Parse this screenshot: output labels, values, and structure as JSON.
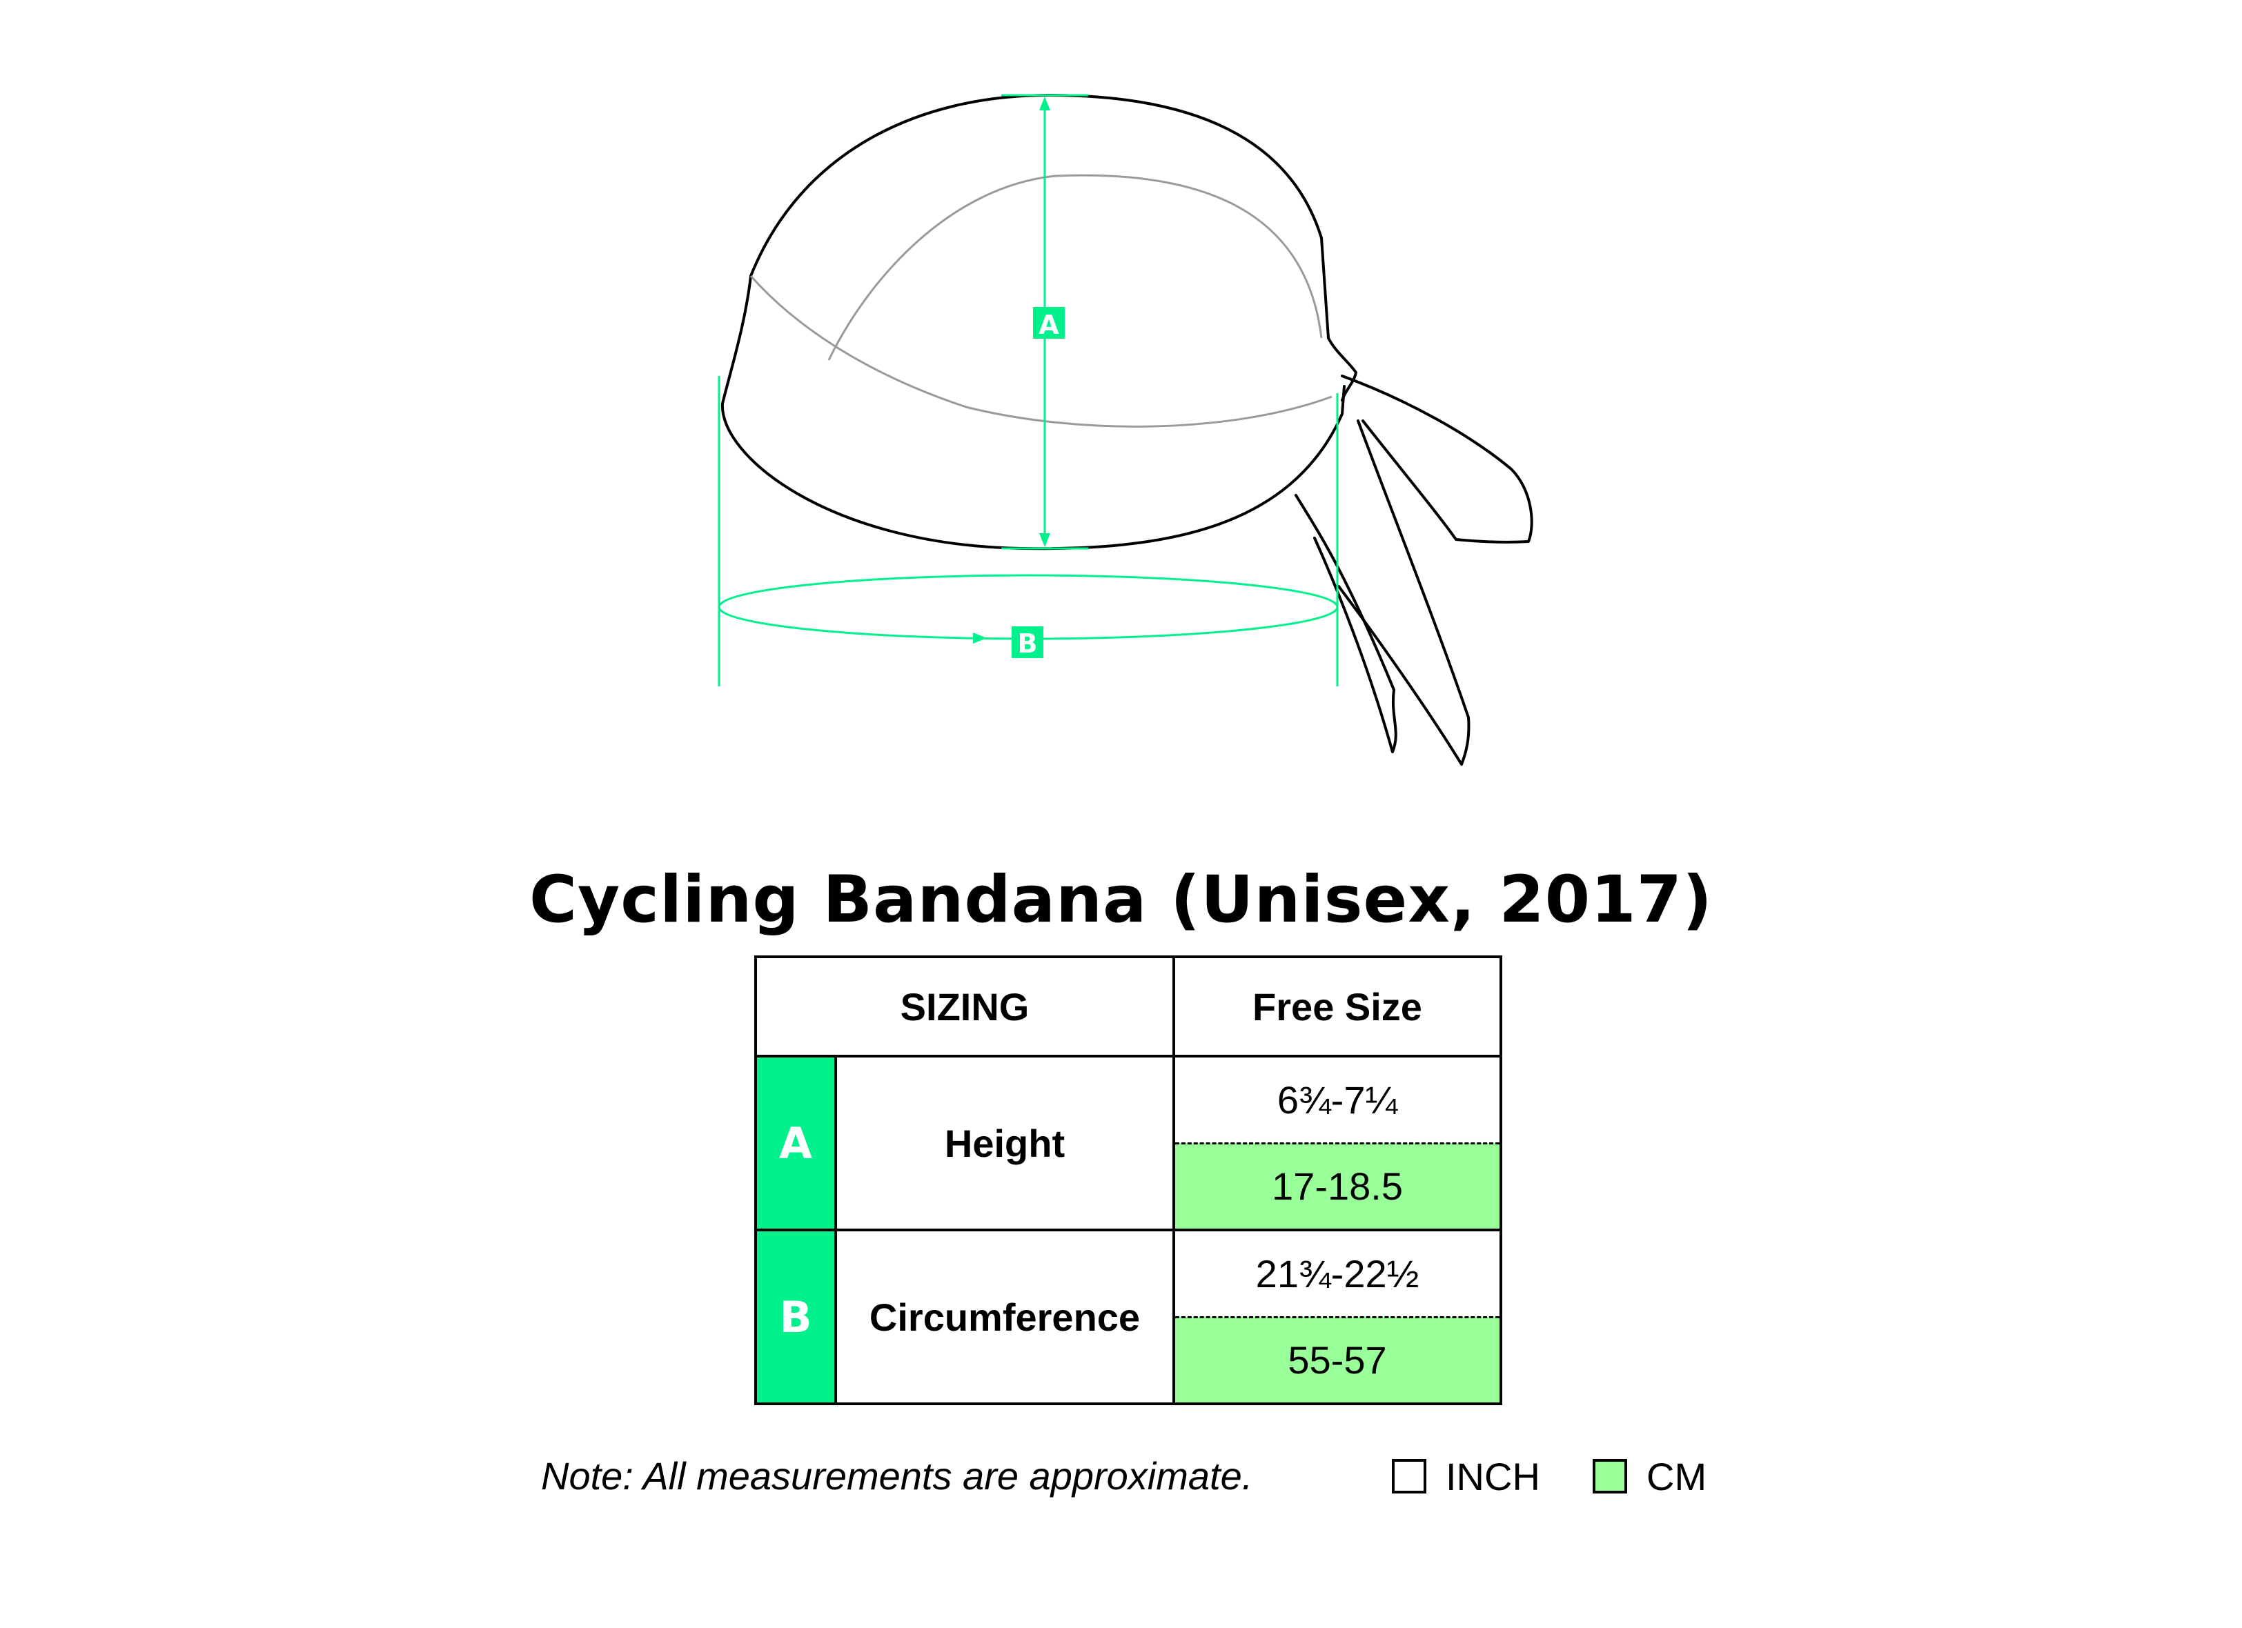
{
  "colors": {
    "measure_line": "#00f08c",
    "letter_bg": "#00f08c",
    "cm_bg": "#99ff99",
    "inch_bg": "#ffffff",
    "outline": "#000000"
  },
  "diagram": {
    "label_a": "A",
    "label_b": "B"
  },
  "title": "Cycling Bandana (Unisex, 2017)",
  "table": {
    "header": {
      "sizing": "SIZING",
      "size": "Free Size"
    },
    "rows": [
      {
        "letter": "A",
        "label": "Height",
        "inch": "6¾-7¼",
        "cm": "17-18.5"
      },
      {
        "letter": "B",
        "label": "Circumference",
        "inch": "21¾-22½",
        "cm": "55-57"
      }
    ]
  },
  "note": "Note: All measurements are approximate.",
  "legend": {
    "inch": "INCH",
    "cm": "CM"
  }
}
